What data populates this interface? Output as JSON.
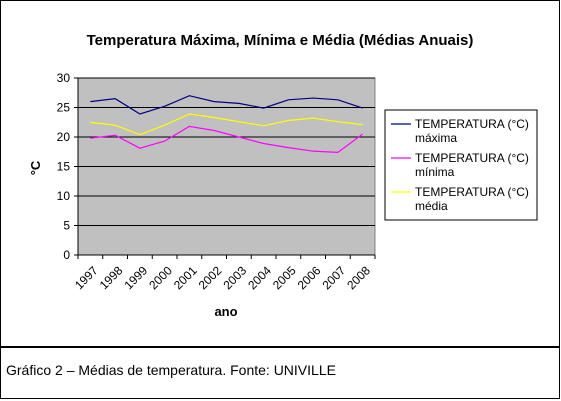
{
  "caption": "Gráfico 2 – Médias de temperatura. Fonte: UNIVILLE",
  "chart_data": {
    "type": "line",
    "title": "Temperatura Máxima, Mínima e Média (Médias Anuais)",
    "xlabel": "ano",
    "ylabel": "°C",
    "categories": [
      "1997",
      "1998",
      "1999",
      "2000",
      "2001",
      "2002",
      "2003",
      "2004",
      "2005",
      "2006",
      "2007",
      "2008"
    ],
    "ylim": [
      0,
      30
    ],
    "yticks": [
      0,
      5,
      10,
      15,
      20,
      25,
      30
    ],
    "grid": true,
    "legend_position": "right",
    "plot_background": "#C0C0C0",
    "series": [
      {
        "name_line1": "TEMPERATURA (°C)",
        "name_line2": "máxima",
        "color": "#000080",
        "values": [
          26.0,
          26.5,
          23.9,
          25.2,
          27.0,
          26.0,
          25.7,
          24.9,
          26.3,
          26.6,
          26.3,
          24.9
        ]
      },
      {
        "name_line1": "TEMPERATURA (°C)",
        "name_line2": "mínima",
        "color": "#FF00FF",
        "values": [
          19.8,
          20.3,
          18.1,
          19.3,
          21.8,
          21.1,
          20.0,
          18.9,
          18.2,
          17.6,
          17.4,
          20.5
        ]
      },
      {
        "name_line1": "TEMPERATURA (°C)",
        "name_line2": "média",
        "color": "#FFFF00",
        "values": [
          22.5,
          22.0,
          20.4,
          22.0,
          23.9,
          23.3,
          22.6,
          21.9,
          22.8,
          23.2,
          22.6,
          22.1
        ]
      }
    ]
  }
}
